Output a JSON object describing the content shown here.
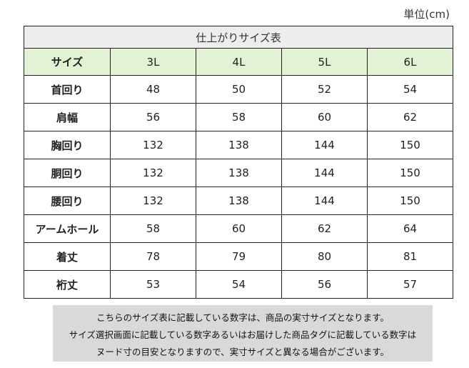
{
  "unit": "単位(cm)",
  "table": {
    "caption": "仕上がりサイズ表",
    "header_label": "サイズ",
    "sizes": [
      "3L",
      "4L",
      "5L",
      "6L"
    ],
    "rows": [
      {
        "label": "首回り",
        "values": [
          "48",
          "50",
          "52",
          "54"
        ]
      },
      {
        "label": "肩幅",
        "values": [
          "56",
          "58",
          "60",
          "62"
        ]
      },
      {
        "label": "胸回り",
        "values": [
          "132",
          "138",
          "144",
          "150"
        ]
      },
      {
        "label": "胴回り",
        "values": [
          "132",
          "138",
          "144",
          "150"
        ]
      },
      {
        "label": "腰回り",
        "values": [
          "132",
          "138",
          "144",
          "150"
        ]
      },
      {
        "label": "アームホール",
        "values": [
          "58",
          "60",
          "62",
          "64"
        ]
      },
      {
        "label": "着丈",
        "values": [
          "78",
          "79",
          "80",
          "81"
        ]
      },
      {
        "label": "裄丈",
        "values": [
          "53",
          "54",
          "56",
          "57"
        ]
      }
    ]
  },
  "note": {
    "lines": [
      "こちらのサイズ表に記載している数字は、商品の実寸サイズとなります。",
      "サイズ選択画面に記載している数字あるいはお届けした商品タグに記載している数字は",
      "ヌード寸の目安となりますので、実寸サイズと異なる場合がございます。"
    ]
  },
  "colors": {
    "header_bg": "#e3f1d4",
    "caption_bg": "#ededed",
    "note_bg": "#d9d9d9"
  }
}
